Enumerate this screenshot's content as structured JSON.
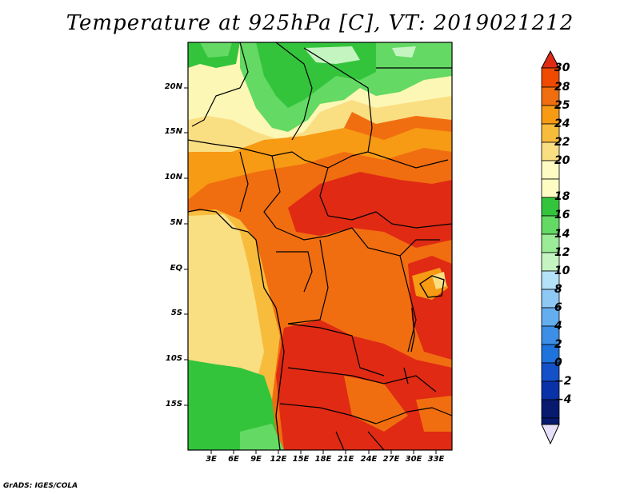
{
  "title": "Temperature at 925hPa [C], VT: 2019021212",
  "footer": "GrADS: IGES/COLA",
  "map": {
    "variable": "Temperature at 925hPa",
    "units": "C",
    "valid_time": "2019021212",
    "lon_range": [
      0,
      35
    ],
    "lat_range": [
      -20,
      25
    ],
    "lat_ticks": [
      "20N",
      "15N",
      "10N",
      "5N",
      "EQ",
      "5S",
      "10S",
      "15S"
    ],
    "lon_ticks": [
      "3E",
      "6E",
      "9E",
      "12E",
      "15E",
      "18E",
      "21E",
      "24E",
      "27E",
      "30E",
      "33E"
    ]
  },
  "colorbar": {
    "labels": [
      "30",
      "28",
      "25",
      "24",
      "22",
      "20",
      "18",
      "16",
      "14",
      "12",
      "10",
      "8",
      "6",
      "4",
      "2",
      "0",
      "−2",
      "−4"
    ],
    "colors": [
      "#e02a14",
      "#f04a00",
      "#f06e10",
      "#f79a14",
      "#f8bc3c",
      "#fade82",
      "#fefcc2",
      "#34c43c",
      "#64d964",
      "#9beb97",
      "#c4f5c1",
      "#b4e2f8",
      "#8ec8f5",
      "#64aef0",
      "#3c8ee6",
      "#1e73dc",
      "#1450c8",
      "#0a32a8",
      "#071a6e"
    ]
  }
}
